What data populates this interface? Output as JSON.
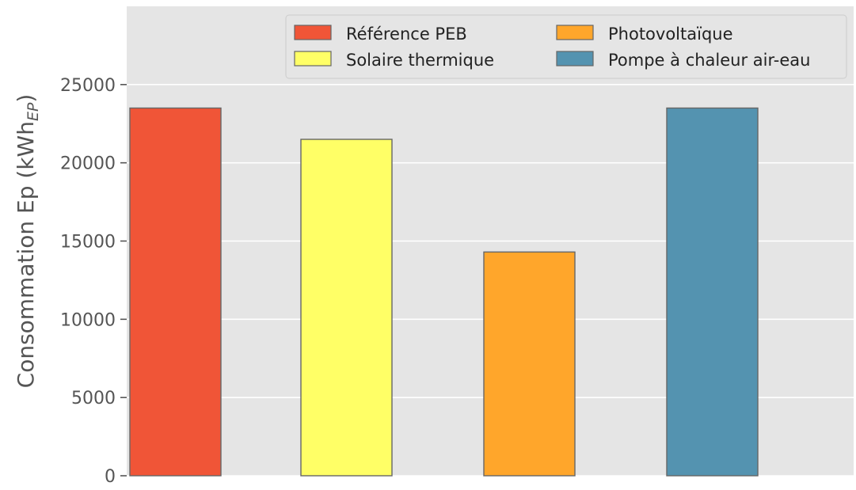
{
  "chart_data": {
    "type": "bar",
    "categories": [
      "Référence PEB",
      "Solaire thermique",
      "Photovoltaïque",
      "Pompe à chaleur air-eau"
    ],
    "values": [
      23500,
      21500,
      14300,
      23500
    ],
    "colors": [
      "#f05537",
      "#ffff66",
      "#ffa62b",
      "#5493b0"
    ],
    "edge_color": "#666666",
    "background": "#e5e5e5",
    "grid": true,
    "grid_color": "#ffffff",
    "ylim": [
      0,
      30000
    ],
    "yticks": [
      0,
      5000,
      10000,
      15000,
      20000,
      25000
    ],
    "ylabel_main": "Consommation Ep (kWh",
    "ylabel_sub": "EP",
    "ylabel_close": ")",
    "xlabel": "",
    "title": "",
    "legend": {
      "location": "top-right",
      "columns": 2,
      "entries": [
        "Référence PEB",
        "Photovoltaïque",
        "Solaire thermique",
        "Pompe à chaleur air-eau"
      ],
      "entry_colors": [
        "#f05537",
        "#ffa62b",
        "#ffff66",
        "#5493b0"
      ]
    }
  }
}
